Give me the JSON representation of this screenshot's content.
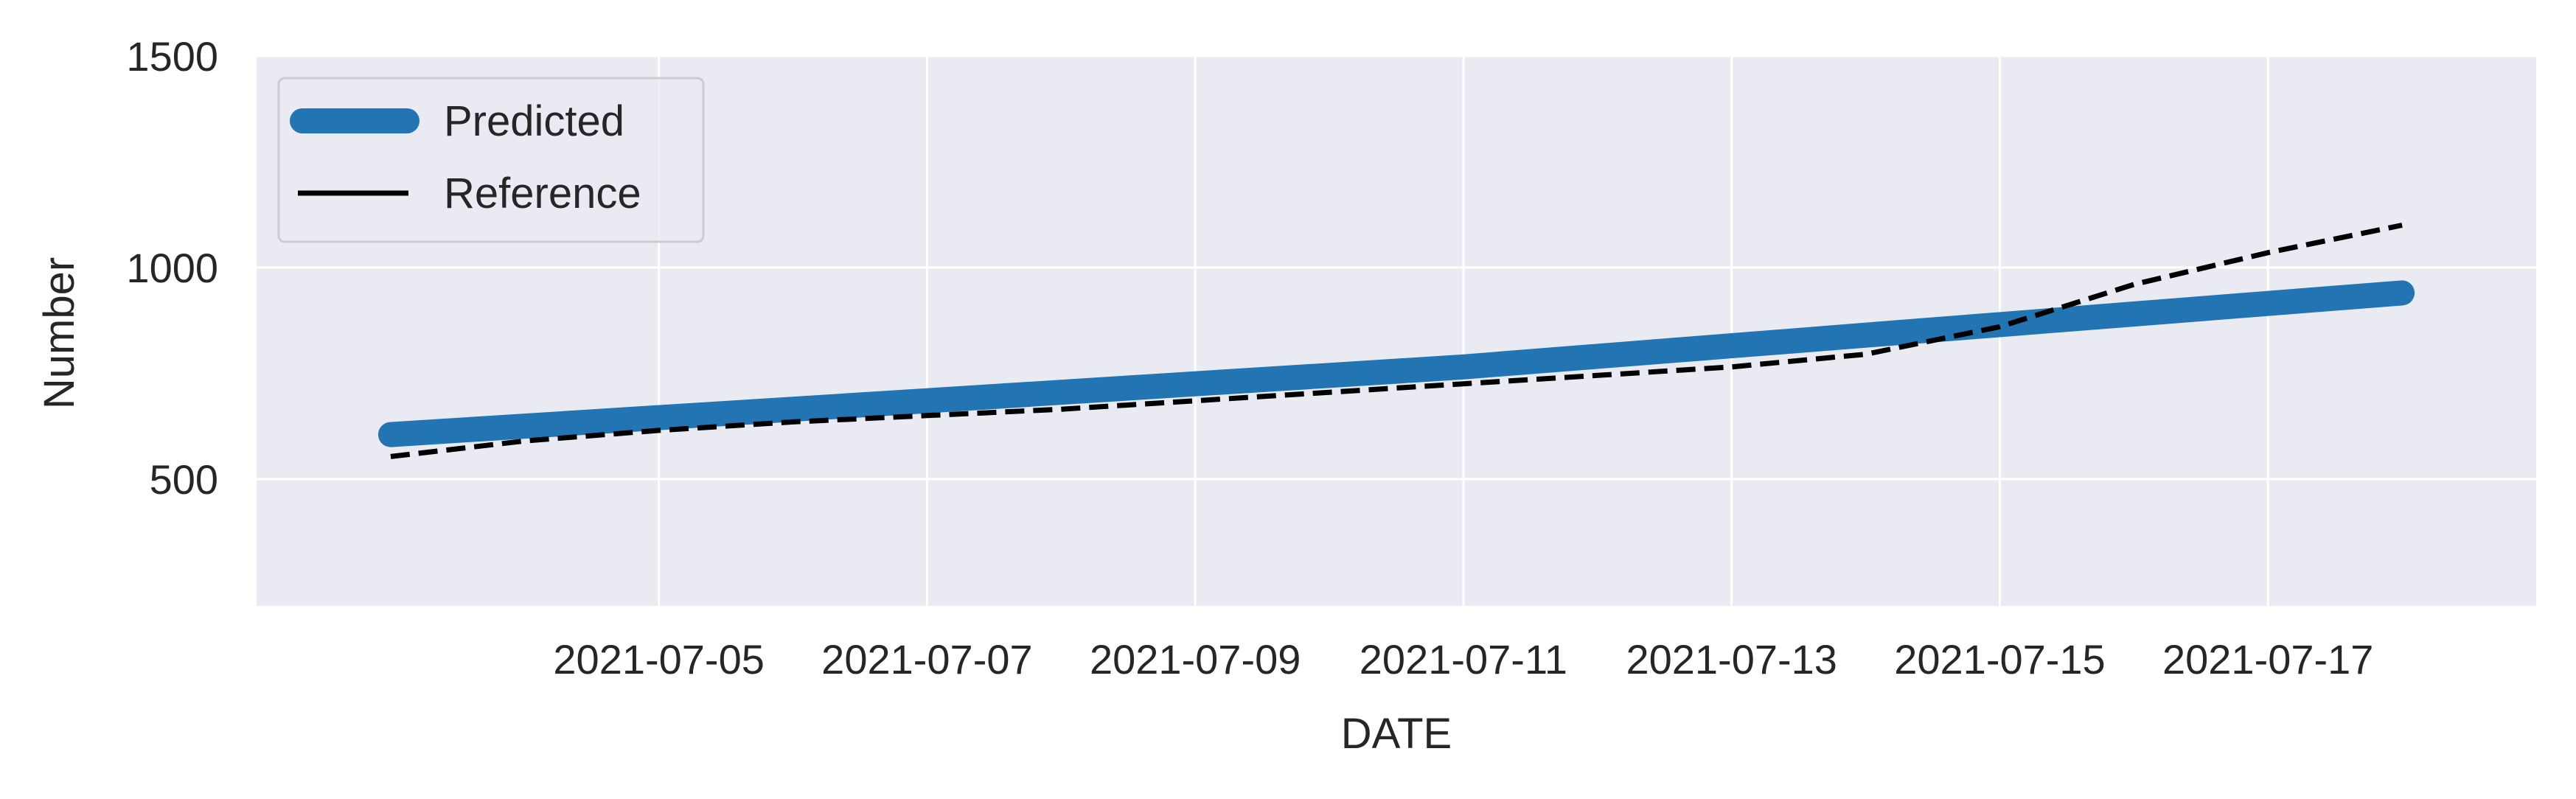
{
  "chart_data": {
    "type": "line",
    "title": "",
    "xlabel": "DATE",
    "ylabel": "Number",
    "x_type": "date",
    "x": [
      "2021-07-03",
      "2021-07-04",
      "2021-07-05",
      "2021-07-06",
      "2021-07-07",
      "2021-07-08",
      "2021-07-09",
      "2021-07-10",
      "2021-07-11",
      "2021-07-12",
      "2021-07-13",
      "2021-07-14",
      "2021-07-15",
      "2021-07-16",
      "2021-07-17",
      "2021-07-18"
    ],
    "xlim": [
      "2021-07-02",
      "2021-07-19"
    ],
    "ylim": [
      200,
      1500
    ],
    "x_ticks": [
      "2021-07-05",
      "2021-07-07",
      "2021-07-09",
      "2021-07-11",
      "2021-07-13",
      "2021-07-15",
      "2021-07-17"
    ],
    "y_ticks": [
      500,
      1000,
      1500
    ],
    "grid": true,
    "legend_position": "upper-left",
    "series": [
      {
        "name": "Predicted",
        "color": "#2274b3",
        "style": "solid-thick",
        "values": [
          605,
          625,
          645,
          665,
          685,
          705,
          725,
          745,
          765,
          790,
          815,
          840,
          865,
          890,
          915,
          940
        ]
      },
      {
        "name": "Reference",
        "color": "#000000",
        "style": "dashed",
        "values": [
          553,
          590,
          615,
          635,
          650,
          665,
          685,
          705,
          725,
          745,
          765,
          795,
          860,
          960,
          1035,
          1100
        ]
      }
    ]
  }
}
